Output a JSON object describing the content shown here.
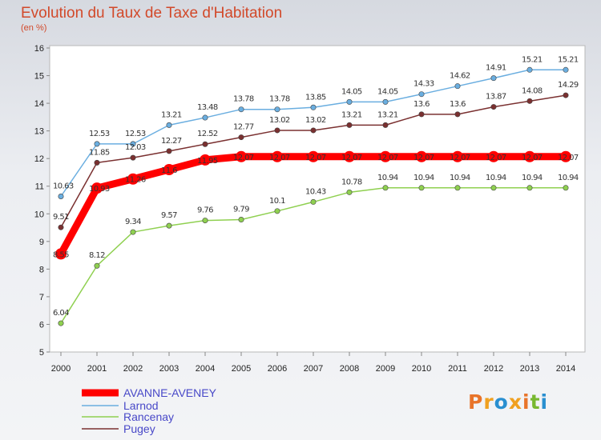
{
  "header": {
    "title": "Evolution du Taux de Taxe d'Habitation",
    "subtitle": "(en %)"
  },
  "logo": {
    "text": "Proxiti"
  },
  "chart_data": {
    "type": "line",
    "title": "Evolution du Taux de Taxe d'Habitation",
    "ylabel": "(en %)",
    "x": [
      "2000",
      "2001",
      "2002",
      "2003",
      "2004",
      "2005",
      "2006",
      "2007",
      "2008",
      "2009",
      "2010",
      "2011",
      "2012",
      "2013",
      "2014"
    ],
    "ylim": [
      5,
      16
    ],
    "yticks": [
      5,
      6,
      7,
      8,
      9,
      10,
      11,
      12,
      13,
      14,
      15,
      16
    ],
    "grid": false,
    "legend": "bottom",
    "series": [
      {
        "name": "AVANNE-AVENEY",
        "color": "#ff0000",
        "values": [
          8.55,
          10.93,
          11.26,
          11.6,
          11.95,
          12.07,
          12.07,
          12.07,
          12.07,
          12.07,
          12.07,
          12.07,
          12.07,
          12.07,
          12.07
        ],
        "labels": [
          "8.55",
          "10.93",
          "11.26",
          "11.6",
          "11.95",
          "12.07",
          "12.07",
          "12.07",
          "12.07",
          "12.07",
          "12.07",
          "12.07",
          "12.07",
          "12.07",
          "12.07"
        ]
      },
      {
        "name": "Larnod",
        "color": "#6aaee0",
        "values": [
          10.63,
          12.53,
          12.53,
          13.21,
          13.48,
          13.78,
          13.78,
          13.85,
          14.05,
          14.05,
          14.33,
          14.62,
          14.91,
          15.21,
          15.21
        ],
        "labels": [
          "10.63",
          "12.53",
          "12.53",
          "13.21",
          "13.48",
          "13.78",
          "13.78",
          "13.85",
          "14.05",
          "14.05",
          "14.33",
          "14.62",
          "14.91",
          "15.21",
          "15.21"
        ]
      },
      {
        "name": "Rancenay",
        "color": "#8fd050",
        "values": [
          6.04,
          8.12,
          9.34,
          9.57,
          9.76,
          9.79,
          10.1,
          10.43,
          10.78,
          10.94,
          10.94,
          10.94,
          10.94,
          10.94,
          10.94
        ],
        "labels": [
          "6.04",
          "8.12",
          "9.34",
          "9.57",
          "9.76",
          "9.79",
          "10.1",
          "10.43",
          "10.78",
          "10.94",
          "10.94",
          "10.94",
          "10.94",
          "10.94",
          "10.94"
        ]
      },
      {
        "name": "Pugey",
        "color": "#7a3030",
        "values": [
          9.51,
          11.85,
          12.03,
          12.27,
          12.52,
          12.77,
          13.02,
          13.02,
          13.21,
          13.21,
          13.6,
          13.6,
          13.87,
          14.08,
          14.29
        ],
        "labels": [
          "9.51",
          "11.85",
          "12.03",
          "12.27",
          "12.52",
          "12.77",
          "13.02",
          "13.02",
          "13.21",
          "13.21",
          "13.6",
          "13.6",
          "13.87",
          "14.08",
          "14.29"
        ]
      }
    ]
  }
}
